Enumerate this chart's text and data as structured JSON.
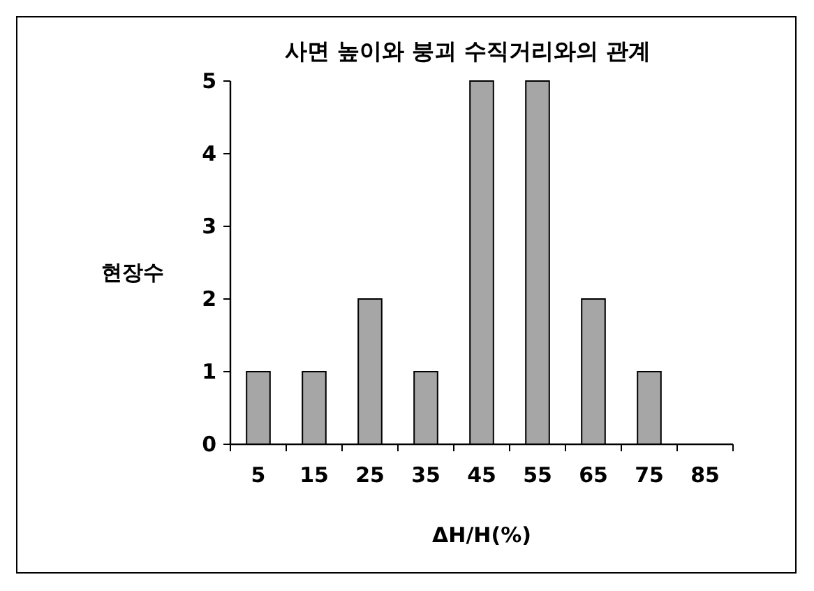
{
  "chart_data": {
    "type": "bar",
    "title": "사면 높이와 붕괴 수직거리와의 관계",
    "xlabel": "ΔH/H(%)",
    "ylabel": "현장수",
    "categories": [
      "5",
      "15",
      "25",
      "35",
      "45",
      "55",
      "65",
      "75",
      "85"
    ],
    "values": [
      1,
      1,
      2,
      1,
      5,
      5,
      2,
      1,
      null
    ],
    "color": "#a6a6a6",
    "ylim": [
      0,
      5
    ],
    "yticks": [
      0,
      1,
      2,
      3,
      4,
      5
    ],
    "grid": false
  }
}
